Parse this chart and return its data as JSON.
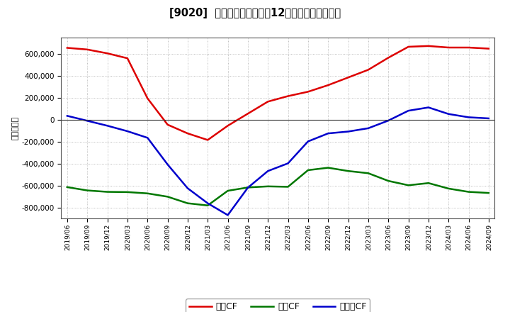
{
  "title": "[9020]  キャッシュフローの12か月移動合計の推移",
  "ylabel": "（百万円）",
  "ylim": [
    -900000,
    750000
  ],
  "yticks": [
    -800000,
    -600000,
    -400000,
    -200000,
    0,
    200000,
    400000,
    600000
  ],
  "background_color": "#ffffff",
  "plot_bg_color": "#ffffff",
  "grid_color": "#aaaaaa",
  "dates": [
    "2019/06",
    "2019/09",
    "2019/12",
    "2020/03",
    "2020/06",
    "2020/09",
    "2020/12",
    "2021/03",
    "2021/06",
    "2021/09",
    "2021/12",
    "2022/03",
    "2022/06",
    "2022/09",
    "2022/12",
    "2023/03",
    "2023/06",
    "2023/09",
    "2023/12",
    "2024/03",
    "2024/06",
    "2024/09"
  ],
  "eigyo_cf": [
    655000,
    640000,
    605000,
    560000,
    195000,
    -45000,
    -125000,
    -185000,
    -55000,
    55000,
    165000,
    215000,
    255000,
    315000,
    385000,
    455000,
    565000,
    665000,
    672000,
    658000,
    658000,
    648000
  ],
  "toshi_cf": [
    -615000,
    -645000,
    -658000,
    -660000,
    -672000,
    -702000,
    -762000,
    -782000,
    -648000,
    -618000,
    -608000,
    -612000,
    -460000,
    -438000,
    -468000,
    -488000,
    -558000,
    -598000,
    -578000,
    -628000,
    -658000,
    -668000
  ],
  "free_cf": [
    35000,
    -10000,
    -55000,
    -105000,
    -165000,
    -408000,
    -625000,
    -762000,
    -870000,
    -620000,
    -468000,
    -398000,
    -198000,
    -125000,
    -108000,
    -78000,
    -8000,
    82000,
    112000,
    52000,
    22000,
    12000
  ],
  "eigyo_color": "#dd0000",
  "toshi_color": "#007700",
  "free_color": "#0000cc",
  "legend_labels": [
    "営業CF",
    "投資CF",
    "フリーCF"
  ]
}
